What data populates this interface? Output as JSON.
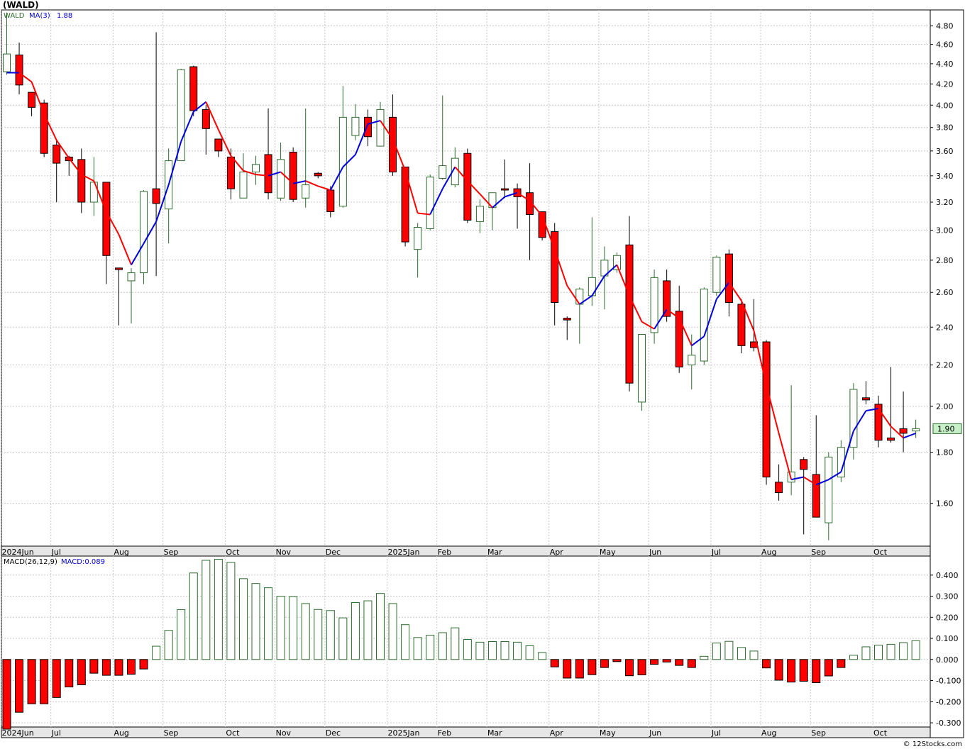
{
  "page": {
    "title": "(WALD)",
    "footer": "© 12Stocks.com"
  },
  "colors": {
    "up_candle_stroke": "#2e6b2e",
    "down_candle_fill": "#ff0000",
    "ma_down": "#ff0000",
    "ma_up": "#0000dd",
    "grid": "#c8c8c8",
    "last_price_bg": "#c8f0c8"
  },
  "chart_data": [
    {
      "type": "candlestick",
      "legend": {
        "symbol": "WALD",
        "ma_label": "MA(3)",
        "ma_value": "1.88"
      },
      "last_price_label": "1.90",
      "y_scale": "log",
      "ylim": [
        1.45,
        4.98
      ],
      "y_ticks": [
        "4.80",
        "4.60",
        "4.40",
        "4.20",
        "4.00",
        "3.80",
        "3.60",
        "3.40",
        "3.20",
        "3.00",
        "2.80",
        "2.60",
        "2.40",
        "2.20",
        "2.00",
        "1.80",
        "1.60"
      ],
      "x_labels": [
        "2024Jun",
        "Jul",
        "Aug",
        "Sep",
        "Oct",
        "Nov",
        "Dec",
        "2025Jan",
        "Feb",
        "Mar",
        "Apr",
        "May",
        "Jun",
        "Jul",
        "Aug",
        "Sep",
        "Oct"
      ],
      "x_label_week_index": [
        0,
        4,
        9,
        13,
        18,
        22,
        26,
        31,
        35,
        39,
        44,
        48,
        52,
        57,
        61,
        65,
        70
      ],
      "candles": [
        {
          "o": 4.32,
          "h": 4.95,
          "l": 4.29,
          "c": 4.5
        },
        {
          "o": 4.49,
          "h": 4.62,
          "l": 4.1,
          "c": 4.19
        },
        {
          "o": 4.12,
          "h": 4.12,
          "l": 3.9,
          "c": 3.98
        },
        {
          "o": 4.02,
          "h": 4.05,
          "l": 3.55,
          "c": 3.58
        },
        {
          "o": 3.65,
          "h": 3.7,
          "l": 3.2,
          "c": 3.5
        },
        {
          "o": 3.55,
          "h": 3.56,
          "l": 3.4,
          "c": 3.52
        },
        {
          "o": 3.53,
          "h": 3.62,
          "l": 3.12,
          "c": 3.2
        },
        {
          "o": 3.2,
          "h": 3.55,
          "l": 3.1,
          "c": 3.35
        },
        {
          "o": 3.35,
          "h": 3.35,
          "l": 2.65,
          "c": 2.83
        },
        {
          "o": 2.75,
          "h": 2.75,
          "l": 2.41,
          "c": 2.74
        },
        {
          "o": 2.67,
          "h": 2.75,
          "l": 2.42,
          "c": 2.72
        },
        {
          "o": 2.72,
          "h": 3.29,
          "l": 2.65,
          "c": 3.28
        },
        {
          "o": 3.3,
          "h": 4.73,
          "l": 2.7,
          "c": 3.19
        },
        {
          "o": 3.15,
          "h": 3.62,
          "l": 2.91,
          "c": 3.52
        },
        {
          "o": 3.52,
          "h": 4.35,
          "l": 3.52,
          "c": 4.34
        },
        {
          "o": 4.37,
          "h": 4.38,
          "l": 3.9,
          "c": 3.95
        },
        {
          "o": 3.96,
          "h": 4.0,
          "l": 3.57,
          "c": 3.79
        },
        {
          "o": 3.7,
          "h": 3.7,
          "l": 3.55,
          "c": 3.6
        },
        {
          "o": 3.55,
          "h": 3.62,
          "l": 3.22,
          "c": 3.3
        },
        {
          "o": 3.23,
          "h": 3.58,
          "l": 3.23,
          "c": 3.43
        },
        {
          "o": 3.43,
          "h": 3.56,
          "l": 3.33,
          "c": 3.49
        },
        {
          "o": 3.57,
          "h": 3.97,
          "l": 3.22,
          "c": 3.27
        },
        {
          "o": 3.23,
          "h": 3.67,
          "l": 3.21,
          "c": 3.53
        },
        {
          "o": 3.59,
          "h": 3.63,
          "l": 3.2,
          "c": 3.22
        },
        {
          "o": 3.23,
          "h": 3.97,
          "l": 3.16,
          "c": 3.33
        },
        {
          "o": 3.42,
          "h": 3.43,
          "l": 3.38,
          "c": 3.4
        },
        {
          "o": 3.29,
          "h": 3.32,
          "l": 3.09,
          "c": 3.13
        },
        {
          "o": 3.17,
          "h": 4.18,
          "l": 3.16,
          "c": 3.89
        },
        {
          "o": 3.73,
          "h": 4.01,
          "l": 3.69,
          "c": 3.89
        },
        {
          "o": 3.89,
          "h": 3.96,
          "l": 3.64,
          "c": 3.72
        },
        {
          "o": 3.64,
          "h": 4.03,
          "l": 3.64,
          "c": 3.96
        },
        {
          "o": 3.89,
          "h": 4.1,
          "l": 3.4,
          "c": 3.43
        },
        {
          "o": 3.47,
          "h": 3.47,
          "l": 2.89,
          "c": 2.92
        },
        {
          "o": 2.87,
          "h": 3.05,
          "l": 2.69,
          "c": 3.02
        },
        {
          "o": 3.01,
          "h": 3.41,
          "l": 3.0,
          "c": 3.39
        },
        {
          "o": 3.38,
          "h": 4.09,
          "l": 3.37,
          "c": 3.48
        },
        {
          "o": 3.33,
          "h": 3.63,
          "l": 3.31,
          "c": 3.54
        },
        {
          "o": 3.58,
          "h": 3.62,
          "l": 3.05,
          "c": 3.07
        },
        {
          "o": 3.06,
          "h": 3.22,
          "l": 2.98,
          "c": 3.17
        },
        {
          "o": 3.16,
          "h": 3.27,
          "l": 3.0,
          "c": 3.27
        },
        {
          "o": 3.3,
          "h": 3.53,
          "l": 3.23,
          "c": 3.29
        },
        {
          "o": 3.3,
          "h": 3.34,
          "l": 3.01,
          "c": 3.24
        },
        {
          "o": 3.27,
          "h": 3.5,
          "l": 2.8,
          "c": 3.11
        },
        {
          "o": 3.13,
          "h": 3.13,
          "l": 2.93,
          "c": 2.95
        },
        {
          "o": 2.99,
          "h": 3.05,
          "l": 2.41,
          "c": 2.54
        },
        {
          "o": 2.45,
          "h": 2.46,
          "l": 2.33,
          "c": 2.44
        },
        {
          "o": 2.53,
          "h": 2.63,
          "l": 2.31,
          "c": 2.62
        },
        {
          "o": 2.58,
          "h": 3.09,
          "l": 2.52,
          "c": 2.69
        },
        {
          "o": 2.7,
          "h": 2.89,
          "l": 2.5,
          "c": 2.8
        },
        {
          "o": 2.74,
          "h": 2.85,
          "l": 2.72,
          "c": 2.83
        },
        {
          "o": 2.9,
          "h": 3.1,
          "l": 2.07,
          "c": 2.11
        },
        {
          "o": 2.02,
          "h": 2.36,
          "l": 1.98,
          "c": 2.36
        },
        {
          "o": 2.37,
          "h": 2.74,
          "l": 2.31,
          "c": 2.69
        },
        {
          "o": 2.67,
          "h": 2.74,
          "l": 2.43,
          "c": 2.46
        },
        {
          "o": 2.49,
          "h": 2.64,
          "l": 2.16,
          "c": 2.19
        },
        {
          "o": 2.2,
          "h": 2.36,
          "l": 2.08,
          "c": 2.25
        },
        {
          "o": 2.22,
          "h": 2.63,
          "l": 2.2,
          "c": 2.62
        },
        {
          "o": 2.6,
          "h": 2.83,
          "l": 2.58,
          "c": 2.82
        },
        {
          "o": 2.84,
          "h": 2.87,
          "l": 2.46,
          "c": 2.54
        },
        {
          "o": 2.53,
          "h": 2.56,
          "l": 2.26,
          "c": 2.3
        },
        {
          "o": 2.32,
          "h": 2.56,
          "l": 2.27,
          "c": 2.29
        },
        {
          "o": 2.32,
          "h": 2.33,
          "l": 1.67,
          "c": 1.7
        },
        {
          "o": 1.68,
          "h": 1.75,
          "l": 1.61,
          "c": 1.64
        },
        {
          "o": 1.68,
          "h": 2.1,
          "l": 1.63,
          "c": 1.72
        },
        {
          "o": 1.77,
          "h": 1.78,
          "l": 1.49,
          "c": 1.73
        },
        {
          "o": 1.71,
          "h": 1.96,
          "l": 1.55,
          "c": 1.55
        },
        {
          "o": 1.53,
          "h": 1.8,
          "l": 1.47,
          "c": 1.78
        },
        {
          "o": 1.7,
          "h": 1.85,
          "l": 1.68,
          "c": 1.82
        },
        {
          "o": 1.82,
          "h": 2.11,
          "l": 1.77,
          "c": 2.08
        },
        {
          "o": 2.04,
          "h": 2.12,
          "l": 2.01,
          "c": 2.03
        },
        {
          "o": 2.01,
          "h": 2.05,
          "l": 1.82,
          "c": 1.85
        },
        {
          "o": 1.86,
          "h": 2.19,
          "l": 1.84,
          "c": 1.85
        },
        {
          "o": 1.9,
          "h": 2.07,
          "l": 1.8,
          "c": 1.88
        },
        {
          "o": 1.89,
          "h": 1.94,
          "l": 1.86,
          "c": 1.9
        }
      ],
      "ma3": [
        4.31,
        4.31,
        4.22,
        3.92,
        3.69,
        3.54,
        3.41,
        3.36,
        3.13,
        2.97,
        2.77,
        2.91,
        3.06,
        3.33,
        3.68,
        3.94,
        4.03,
        3.78,
        3.56,
        3.44,
        3.41,
        3.4,
        3.43,
        3.34,
        3.36,
        3.32,
        3.29,
        3.47,
        3.57,
        3.83,
        3.86,
        3.7,
        3.44,
        3.12,
        3.11,
        3.3,
        3.47,
        3.36,
        3.26,
        3.16,
        3.24,
        3.27,
        3.21,
        3.1,
        2.87,
        2.64,
        2.53,
        2.58,
        2.7,
        2.77,
        2.58,
        2.43,
        2.39,
        2.5,
        2.45,
        2.3,
        2.35,
        2.56,
        2.66,
        2.55,
        2.38,
        2.1,
        1.88,
        1.69,
        1.7,
        1.67,
        1.69,
        1.72,
        1.89,
        1.98,
        1.99,
        1.91,
        1.86,
        1.88
      ]
    },
    {
      "type": "bar",
      "legend": {
        "label": "MACD(26,12,9)",
        "value_label": "MACD:0.089"
      },
      "ylim": [
        -0.32,
        0.49
      ],
      "y_ticks": [
        "0.400",
        "0.300",
        "0.200",
        "0.100",
        "0.000",
        "-0.100",
        "-0.200",
        "-0.300"
      ],
      "x_labels": [
        "2024Jun",
        "Jul",
        "Aug",
        "Sep",
        "Oct",
        "Nov",
        "Dec",
        "2025Jan",
        "Feb",
        "Mar",
        "Apr",
        "May",
        "Jun",
        "Jul",
        "Aug",
        "Sep",
        "Oct"
      ],
      "values": [
        -0.33,
        -0.25,
        -0.21,
        -0.21,
        -0.18,
        -0.13,
        -0.12,
        -0.065,
        -0.075,
        -0.075,
        -0.07,
        -0.045,
        0.063,
        0.138,
        0.236,
        0.41,
        0.47,
        0.475,
        0.46,
        0.383,
        0.36,
        0.34,
        0.3,
        0.298,
        0.265,
        0.237,
        0.232,
        0.197,
        0.27,
        0.278,
        0.313,
        0.265,
        0.165,
        0.104,
        0.115,
        0.127,
        0.15,
        0.095,
        0.082,
        0.085,
        0.085,
        0.082,
        0.065,
        0.033,
        -0.035,
        -0.088,
        -0.088,
        -0.072,
        -0.038,
        -0.01,
        -0.077,
        -0.073,
        -0.023,
        -0.012,
        -0.028,
        -0.038,
        0.015,
        0.078,
        0.086,
        0.057,
        0.04,
        -0.04,
        -0.098,
        -0.107,
        -0.103,
        -0.11,
        -0.078,
        -0.038,
        0.02,
        0.06,
        0.068,
        0.072,
        0.08,
        0.089
      ]
    }
  ]
}
